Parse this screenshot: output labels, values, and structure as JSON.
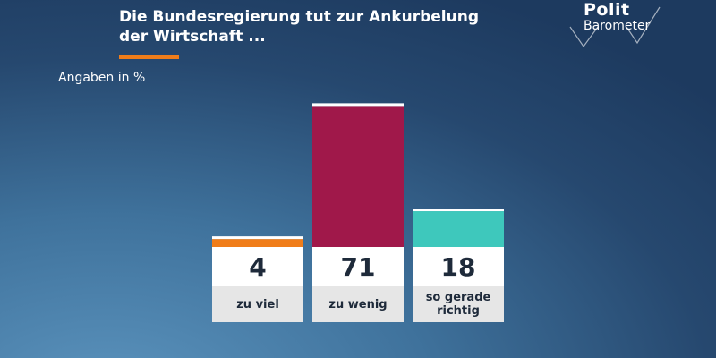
{
  "logo": {
    "line1": "Polit",
    "line2": "Barometer"
  },
  "chart_data": {
    "type": "bar",
    "title": "Die Bundesregierung tut zur Ankurbelung\nder Wirtschaft ...",
    "subtitle": "Angaben in %",
    "categories": [
      "zu viel",
      "zu wenig",
      "so gerade richtig"
    ],
    "values": [
      4,
      71,
      18
    ],
    "colors": [
      "#f07d1a",
      "#a0184a",
      "#3ec8bc"
    ]
  }
}
